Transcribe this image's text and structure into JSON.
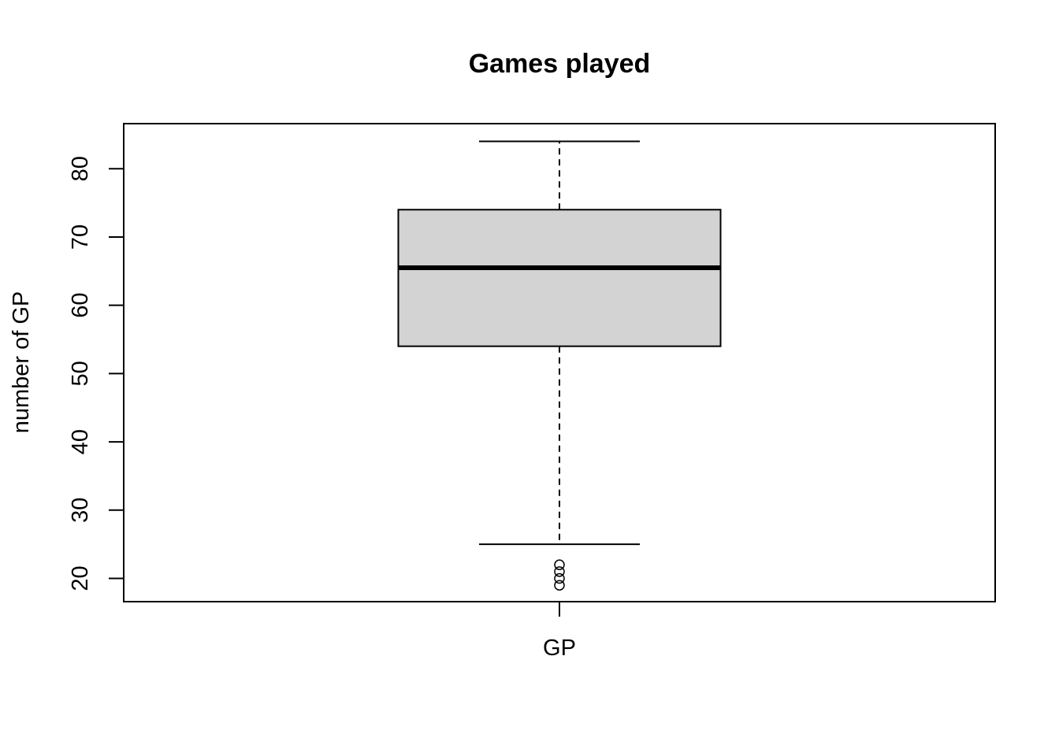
{
  "chart_data": {
    "type": "boxplot",
    "title": "Games played",
    "xlabel": "",
    "ylabel": "number of GP",
    "categories": [
      "GP"
    ],
    "ylim": [
      16.6,
      86.6
    ],
    "yticks": [
      20,
      30,
      40,
      50,
      60,
      70,
      80
    ],
    "box": {
      "name": "GP",
      "whisker_low": 25,
      "q1": 54,
      "median": 65.5,
      "q3": 74,
      "whisker_high": 84,
      "outliers": [
        19,
        20,
        21,
        22
      ]
    },
    "colors": {
      "box_fill": "#d3d3d3",
      "stroke": "#000000"
    }
  }
}
